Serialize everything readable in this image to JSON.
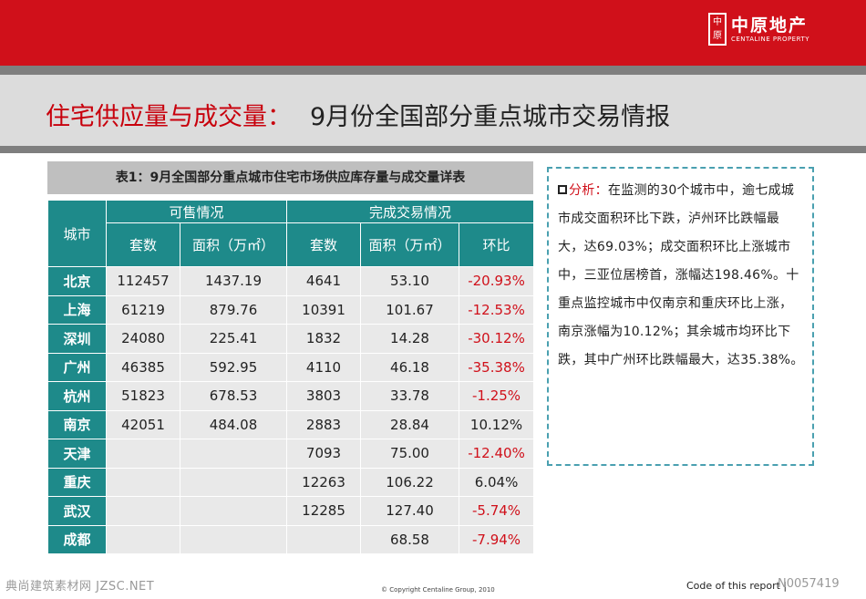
{
  "logo": {
    "seal": "中原",
    "name_cn": "中原地产",
    "name_en": "CENTALINE PROPERTY"
  },
  "title": {
    "highlight": "住宅供应量与成交量：",
    "main": "9月份全国部分重点城市交易情报"
  },
  "table": {
    "caption": "表1：9月全国部分重点城市住宅市场供应库存量与成交量详表",
    "header_city": "城市",
    "header_supply": "可售情况",
    "header_deal": "完成交易情况",
    "col_units": "套数",
    "col_area": "面积（万㎡）",
    "col_change": "环比",
    "rows": [
      {
        "city": "北京",
        "supply_units": "112457",
        "supply_area": "1437.19",
        "deal_units": "4641",
        "deal_area": "53.10",
        "change": "-20.93%"
      },
      {
        "city": "上海",
        "supply_units": "61219",
        "supply_area": "879.76",
        "deal_units": "10391",
        "deal_area": "101.67",
        "change": "-12.53%"
      },
      {
        "city": "深圳",
        "supply_units": "24080",
        "supply_area": "225.41",
        "deal_units": "1832",
        "deal_area": "14.28",
        "change": "-30.12%"
      },
      {
        "city": "广州",
        "supply_units": "46385",
        "supply_area": "592.95",
        "deal_units": "4110",
        "deal_area": "46.18",
        "change": "-35.38%"
      },
      {
        "city": "杭州",
        "supply_units": "51823",
        "supply_area": "678.53",
        "deal_units": "3803",
        "deal_area": "33.78",
        "change": "-1.25%"
      },
      {
        "city": "南京",
        "supply_units": "42051",
        "supply_area": "484.08",
        "deal_units": "2883",
        "deal_area": "28.84",
        "change": "10.12%"
      },
      {
        "city": "天津",
        "supply_units": "",
        "supply_area": "",
        "deal_units": "7093",
        "deal_area": "75.00",
        "change": "-12.40%"
      },
      {
        "city": "重庆",
        "supply_units": "",
        "supply_area": "",
        "deal_units": "12263",
        "deal_area": "106.22",
        "change": "6.04%"
      },
      {
        "city": "武汉",
        "supply_units": "",
        "supply_area": "",
        "deal_units": "12285",
        "deal_area": "127.40",
        "change": "-5.74%"
      },
      {
        "city": "成都",
        "supply_units": "",
        "supply_area": "",
        "deal_units": "",
        "deal_area": "68.58",
        "change": "-7.94%"
      }
    ]
  },
  "analysis": {
    "label": "分析：",
    "text": "在监测的30个城市中，逾七成城市成交面积环比下跌，泸州环比跌幅最大，达69.03%；成交面积环比上涨城市中，三亚位居榜首，涨幅达198.46%。十重点监控城市中仅南京和重庆环比上涨，南京涨幅为10.12%；其余城市均环比下跌，其中广州环比跌幅最大，达35.38%。"
  },
  "footer": {
    "watermark": "典尚建筑素材网 JZSC.NET",
    "copyright": "© Copyright  Centaline Group, 2010",
    "code_label": "Code of this report  |",
    "code_id": "N0057419"
  },
  "colors": {
    "brand_red": "#d0101a",
    "teal": "#1e8a8a",
    "cell_gray": "#e9e9e9"
  }
}
